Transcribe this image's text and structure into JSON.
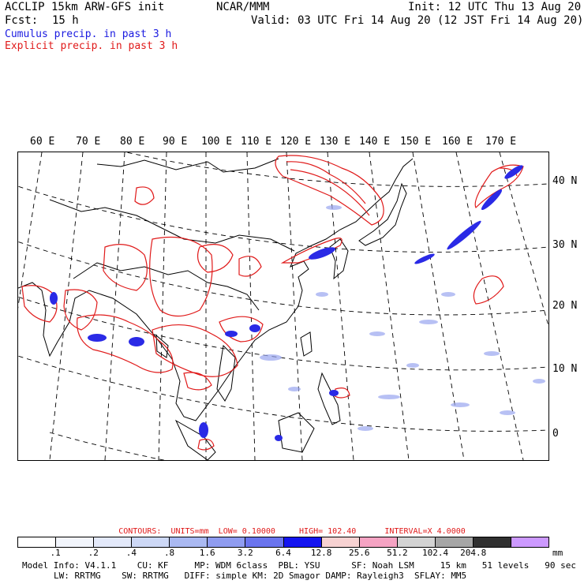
{
  "header": {
    "line1_left": "ACCLIP 15km ARW-GFS init",
    "center": "NCAR/MMM",
    "line1_right": "Init: 12 UTC Thu 13 Aug 20",
    "fcst_label": "Fcst:",
    "fcst_value": "15 h",
    "line2_right": "Valid: 03 UTC Fri 14 Aug 20 (12 JST Fri 14 Aug 20)",
    "legend_cumulus": "Cumulus precip. in past 3 h",
    "legend_explicit": "Explicit precip. in past 3 h"
  },
  "map": {
    "longitude_labels": [
      "60 E",
      "70 E",
      "80 E",
      "90 E",
      "100 E",
      "110 E",
      "120 E",
      "130 E",
      "140 E",
      "150 E",
      "160 E",
      "170 E"
    ],
    "latitude_labels": [
      "40 N",
      "30 N",
      "20 N",
      "10 N",
      "0"
    ]
  },
  "contours": {
    "label": "CONTOURS:",
    "units": "UNITS=mm",
    "low": "LOW= 0.10000",
    "high": "HIGH= 102.40",
    "interval": "INTERVAL=X 4.0000"
  },
  "colorbar": {
    "colors": [
      "#ffffff",
      "#f2f5fc",
      "#e3e9fa",
      "#cdd8f6",
      "#aab9f2",
      "#8f9cf0",
      "#6a74ee",
      "#1414f0",
      "#f7d2d2",
      "#f5a3c3",
      "#d3d3d3",
      "#a6a6a6",
      "#303030",
      "#cc99ff"
    ],
    "labels": [
      ".1",
      ".2",
      ".4",
      ".8",
      "1.6",
      "3.2",
      "6.4",
      "12.8",
      "25.6",
      "51.2",
      "102.4",
      "204.8"
    ],
    "units": "mm"
  },
  "model_info": {
    "line1": "Model Info: V4.1.1    CU: KF     MP: WDM 6class  PBL: YSU      SF: Noah LSM     15 km   51 levels   90 sec",
    "line2": "LW: RRTMG    SW: RRTMG   DIFF: simple KM: 2D Smagor DAMP: Rayleigh3  SFLAY: MM5"
  }
}
